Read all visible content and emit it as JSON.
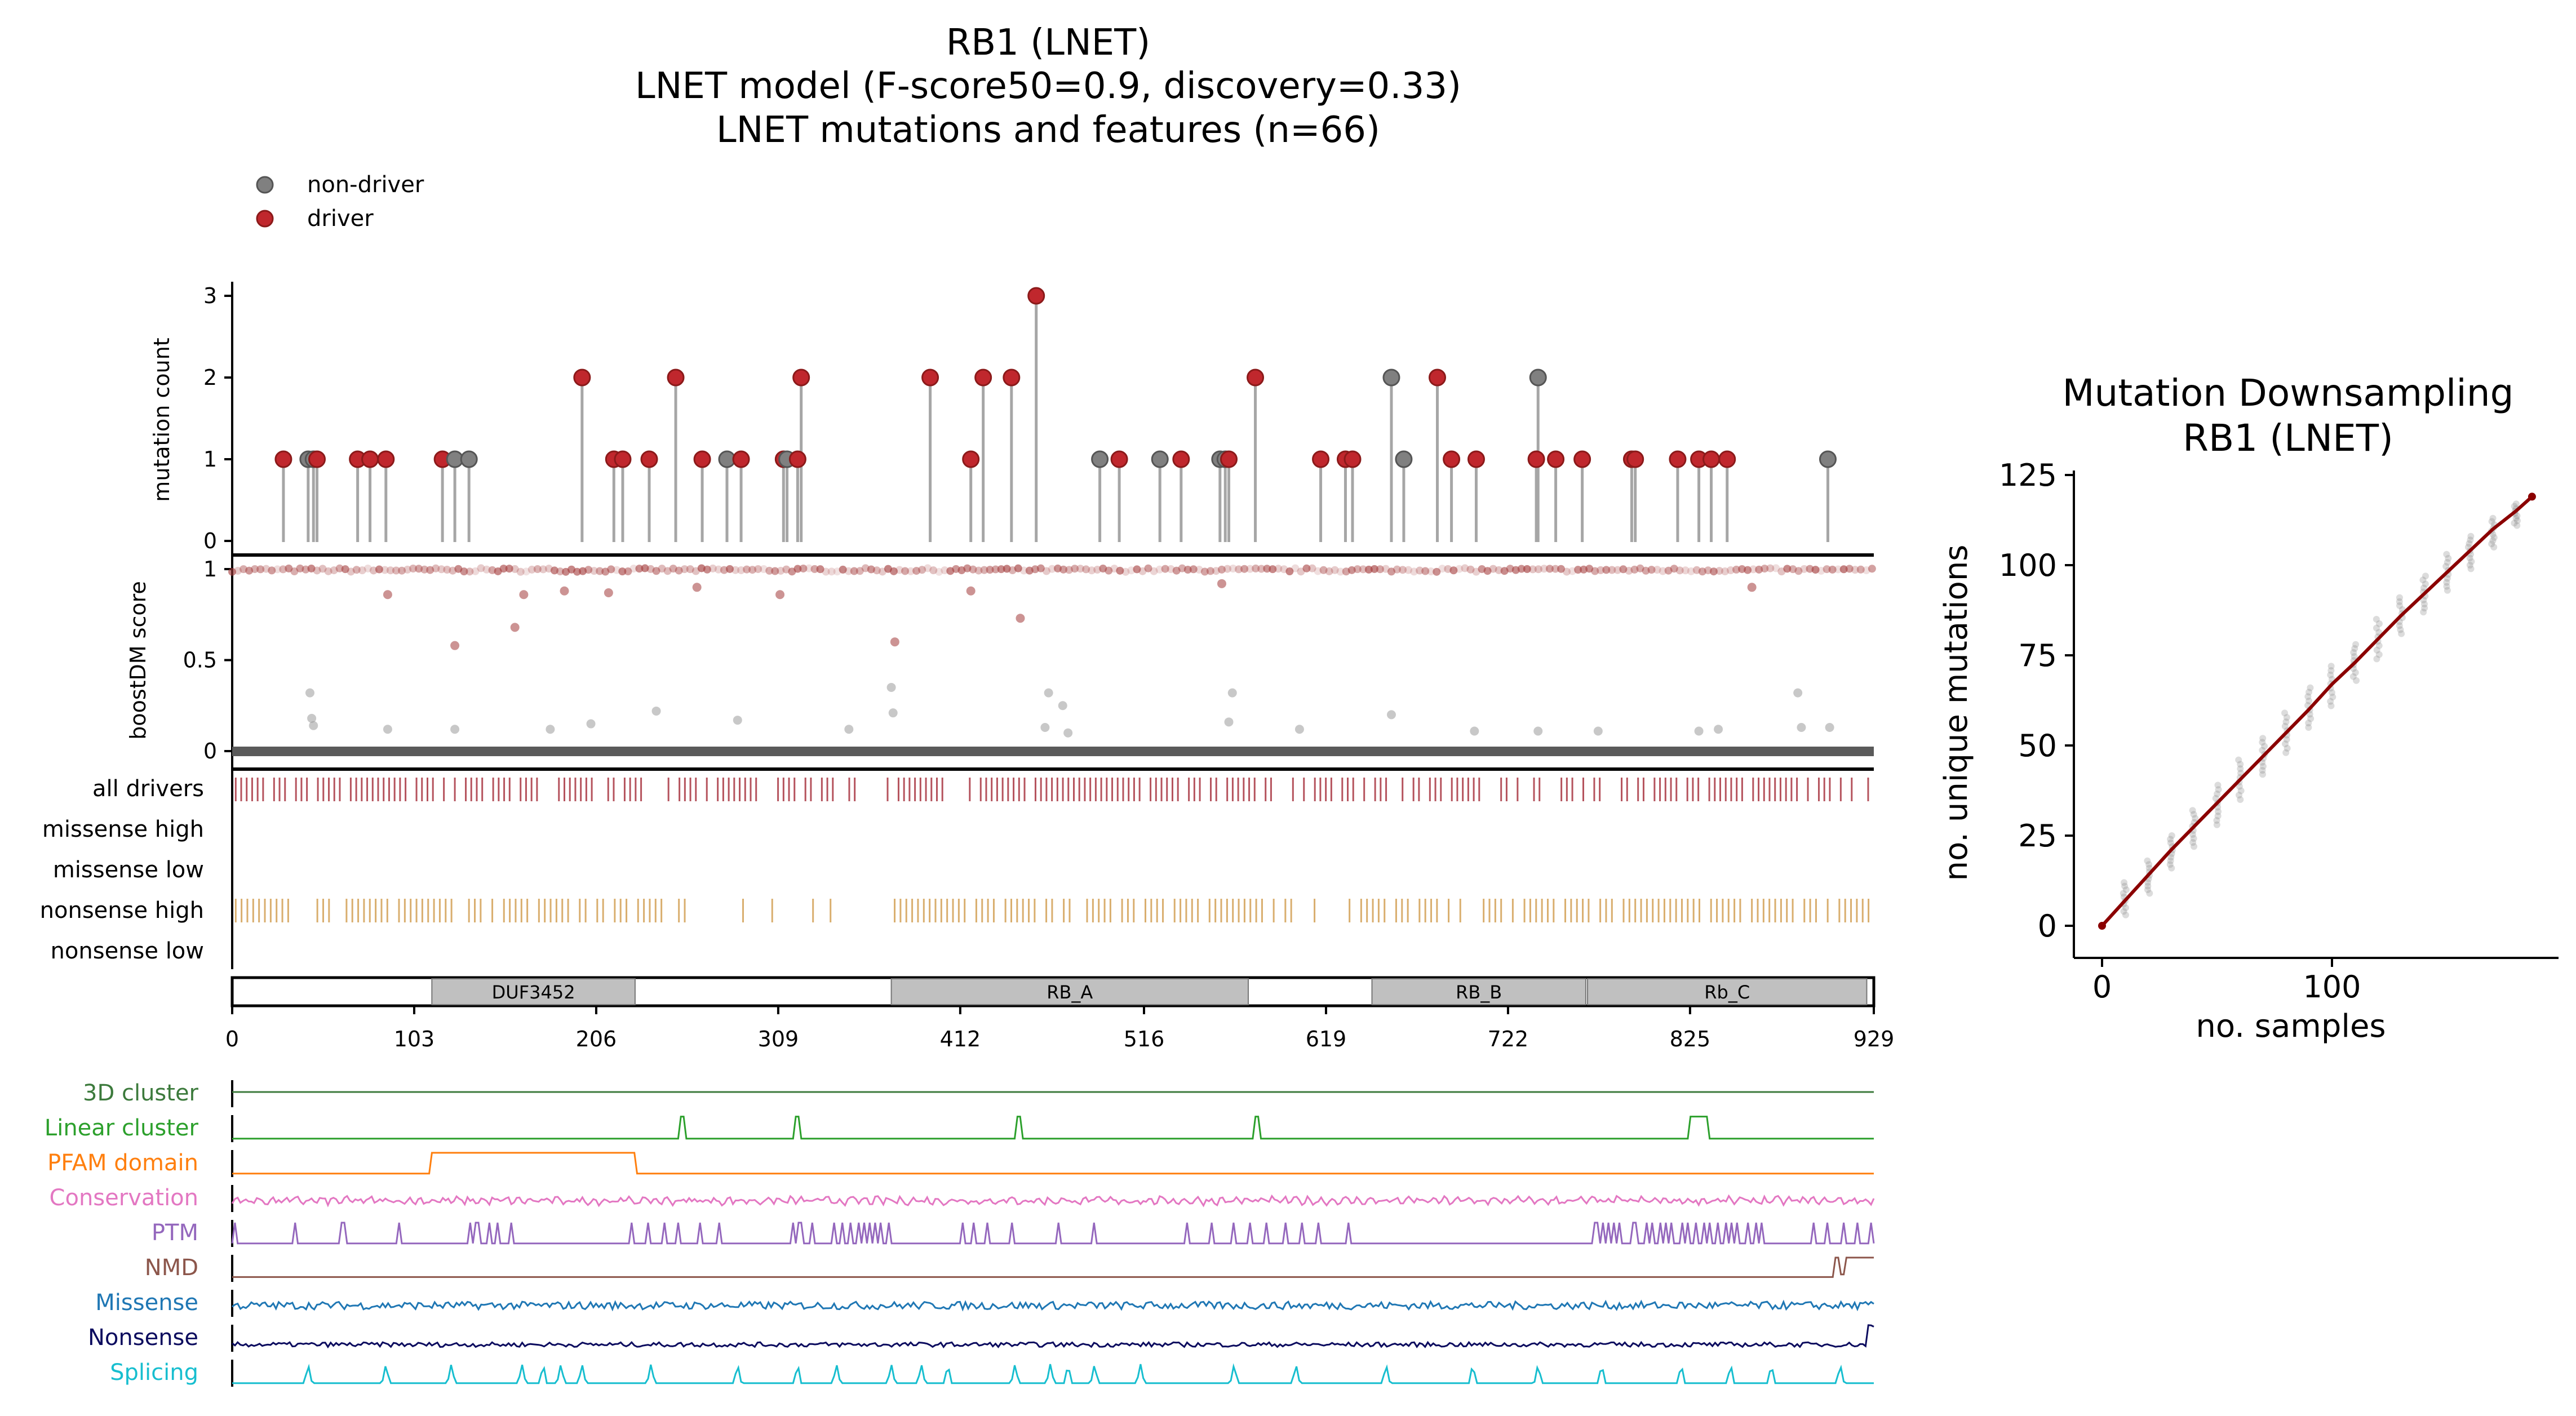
{
  "title": {
    "line1": "RB1 (LNET)",
    "line2": "LNET model (F-score50=0.9, discovery=0.33)",
    "line3": "LNET mutations and features (n=66)"
  },
  "legend": {
    "non_driver_label": "non-driver",
    "driver_label": "driver",
    "colors": {
      "non_driver": "#808080",
      "driver": "#c0272d"
    }
  },
  "colors": {
    "stem": "#a6a6a6",
    "driver_dot": "#c0272d",
    "non_driver_dot": "#808080",
    "score_pos": "#a33b3b",
    "score_neg": "#9a9a9a",
    "all_drivers_tick": "#b5535d",
    "nonsense_tick": "#d9ae6e",
    "domain_fill": "#c0c0c0",
    "downsampling_line": "#8b0000",
    "downsampling_points": "#8a8a8a"
  },
  "chart_data": [
    {
      "type": "lollipop",
      "ylabel": "mutation count",
      "yticks": [
        "0",
        "1",
        "2",
        "3"
      ],
      "ylim": [
        0,
        3
      ],
      "xlim": [
        0,
        929
      ],
      "mutations": [
        {
          "pos": 29,
          "count": 1,
          "driver": true
        },
        {
          "pos": 43,
          "count": 1,
          "driver": false
        },
        {
          "pos": 46,
          "count": 1,
          "driver": false
        },
        {
          "pos": 48,
          "count": 1,
          "driver": true
        },
        {
          "pos": 71,
          "count": 1,
          "driver": true
        },
        {
          "pos": 78,
          "count": 1,
          "driver": true
        },
        {
          "pos": 87,
          "count": 1,
          "driver": true
        },
        {
          "pos": 119,
          "count": 1,
          "driver": true
        },
        {
          "pos": 126,
          "count": 1,
          "driver": false
        },
        {
          "pos": 134,
          "count": 1,
          "driver": false
        },
        {
          "pos": 198,
          "count": 2,
          "driver": true
        },
        {
          "pos": 216,
          "count": 1,
          "driver": true
        },
        {
          "pos": 221,
          "count": 1,
          "driver": true
        },
        {
          "pos": 236,
          "count": 1,
          "driver": true
        },
        {
          "pos": 251,
          "count": 2,
          "driver": true
        },
        {
          "pos": 266,
          "count": 1,
          "driver": true
        },
        {
          "pos": 280,
          "count": 1,
          "driver": false
        },
        {
          "pos": 288,
          "count": 1,
          "driver": true
        },
        {
          "pos": 312,
          "count": 1,
          "driver": true
        },
        {
          "pos": 314,
          "count": 1,
          "driver": false
        },
        {
          "pos": 320,
          "count": 1,
          "driver": true
        },
        {
          "pos": 322,
          "count": 2,
          "driver": true
        },
        {
          "pos": 395,
          "count": 2,
          "driver": true
        },
        {
          "pos": 418,
          "count": 1,
          "driver": true
        },
        {
          "pos": 425,
          "count": 2,
          "driver": true
        },
        {
          "pos": 441,
          "count": 2,
          "driver": true
        },
        {
          "pos": 455,
          "count": 3,
          "driver": true
        },
        {
          "pos": 491,
          "count": 1,
          "driver": false
        },
        {
          "pos": 502,
          "count": 1,
          "driver": true
        },
        {
          "pos": 525,
          "count": 1,
          "driver": false
        },
        {
          "pos": 537,
          "count": 1,
          "driver": true
        },
        {
          "pos": 559,
          "count": 1,
          "driver": false
        },
        {
          "pos": 562,
          "count": 1,
          "driver": false
        },
        {
          "pos": 564,
          "count": 1,
          "driver": true
        },
        {
          "pos": 579,
          "count": 2,
          "driver": true
        },
        {
          "pos": 616,
          "count": 1,
          "driver": true
        },
        {
          "pos": 630,
          "count": 1,
          "driver": true
        },
        {
          "pos": 634,
          "count": 1,
          "driver": true
        },
        {
          "pos": 656,
          "count": 2,
          "driver": false
        },
        {
          "pos": 663,
          "count": 1,
          "driver": false
        },
        {
          "pos": 682,
          "count": 2,
          "driver": true
        },
        {
          "pos": 690,
          "count": 1,
          "driver": true
        },
        {
          "pos": 704,
          "count": 1,
          "driver": true
        },
        {
          "pos": 738,
          "count": 1,
          "driver": true
        },
        {
          "pos": 739,
          "count": 2,
          "driver": false
        },
        {
          "pos": 749,
          "count": 1,
          "driver": true
        },
        {
          "pos": 764,
          "count": 1,
          "driver": true
        },
        {
          "pos": 792,
          "count": 1,
          "driver": true
        },
        {
          "pos": 794,
          "count": 1,
          "driver": true
        },
        {
          "pos": 818,
          "count": 1,
          "driver": true
        },
        {
          "pos": 830,
          "count": 1,
          "driver": true
        },
        {
          "pos": 837,
          "count": 1,
          "driver": true
        },
        {
          "pos": 846,
          "count": 1,
          "driver": true
        },
        {
          "pos": 903,
          "count": 1,
          "driver": false
        }
      ]
    },
    {
      "type": "scatter",
      "ylabel": "boostDM score",
      "yticks": [
        "0",
        "0.5",
        "1"
      ],
      "ylim": [
        0,
        1
      ],
      "xlim": [
        0,
        929
      ],
      "high_scores": [
        {
          "x": 165,
          "y": 0.86
        },
        {
          "x": 213,
          "y": 0.87
        },
        {
          "x": 263,
          "y": 0.9
        },
        {
          "x": 310,
          "y": 0.86
        },
        {
          "x": 418,
          "y": 0.88
        },
        {
          "x": 446,
          "y": 0.73
        },
        {
          "x": 88,
          "y": 0.86
        },
        {
          "x": 126,
          "y": 0.58
        },
        {
          "x": 160,
          "y": 0.68
        },
        {
          "x": 188,
          "y": 0.88
        },
        {
          "x": 375,
          "y": 0.6
        },
        {
          "x": 560,
          "y": 0.92
        },
        {
          "x": 860,
          "y": 0.9
        }
      ],
      "low_scores": [
        {
          "x": 44,
          "y": 0.32
        },
        {
          "x": 45,
          "y": 0.18
        },
        {
          "x": 46,
          "y": 0.14
        },
        {
          "x": 88,
          "y": 0.12
        },
        {
          "x": 126,
          "y": 0.12
        },
        {
          "x": 180,
          "y": 0.12
        },
        {
          "x": 203,
          "y": 0.15
        },
        {
          "x": 240,
          "y": 0.22
        },
        {
          "x": 286,
          "y": 0.17
        },
        {
          "x": 349,
          "y": 0.12
        },
        {
          "x": 373,
          "y": 0.35
        },
        {
          "x": 374,
          "y": 0.21
        },
        {
          "x": 462,
          "y": 0.32
        },
        {
          "x": 470,
          "y": 0.25
        },
        {
          "x": 460,
          "y": 0.13
        },
        {
          "x": 473,
          "y": 0.1
        },
        {
          "x": 564,
          "y": 0.16
        },
        {
          "x": 566,
          "y": 0.32
        },
        {
          "x": 604,
          "y": 0.12
        },
        {
          "x": 656,
          "y": 0.2
        },
        {
          "x": 703,
          "y": 0.11
        },
        {
          "x": 739,
          "y": 0.11
        },
        {
          "x": 773,
          "y": 0.11
        },
        {
          "x": 830,
          "y": 0.11
        },
        {
          "x": 841,
          "y": 0.12
        },
        {
          "x": 886,
          "y": 0.32
        },
        {
          "x": 888,
          "y": 0.13
        },
        {
          "x": 904,
          "y": 0.13
        }
      ]
    },
    {
      "type": "track",
      "rows": [
        "all drivers",
        "missense high",
        "missense low",
        "nonsense high",
        "nonsense low"
      ]
    },
    {
      "type": "domains",
      "domains": [
        {
          "name": "DUF3452",
          "start": 113,
          "end": 228
        },
        {
          "name": "RB_A",
          "start": 373,
          "end": 575
        },
        {
          "name": "RB_B",
          "start": 645,
          "end": 766
        },
        {
          "name": "Rb_C",
          "start": 767,
          "end": 925
        }
      ],
      "xticks": [
        "0",
        "103",
        "206",
        "309",
        "412",
        "516",
        "619",
        "722",
        "825",
        "929"
      ],
      "xmax": 929
    },
    {
      "type": "line",
      "features": [
        {
          "name": "3D cluster",
          "color": "#3c7a3c"
        },
        {
          "name": "Linear cluster",
          "color": "#2ca02c"
        },
        {
          "name": "PFAM domain",
          "color": "#ff7f0e"
        },
        {
          "name": "Conservation",
          "color": "#e377c2"
        },
        {
          "name": "PTM",
          "color": "#9467bd"
        },
        {
          "name": "NMD",
          "color": "#8c564b"
        },
        {
          "name": "Missense",
          "color": "#1f77b4"
        },
        {
          "name": "Nonsense",
          "color": "#0b0b5e"
        },
        {
          "name": "Splicing",
          "color": "#17becf"
        }
      ],
      "linear_cluster_positions": [
        255,
        320,
        445,
        580,
        830
      ],
      "pfam_range": [
        113,
        228
      ],
      "nmd_range": [
        905,
        929
      ],
      "ptm_positions": [
        2,
        35,
        62,
        63,
        94,
        135,
        138,
        140,
        145,
        150,
        158,
        226,
        236,
        245,
        252,
        265,
        276,
        318,
        320,
        322,
        328,
        340,
        345,
        350,
        355,
        358,
        361,
        364,
        367,
        371,
        414,
        420,
        428,
        442,
        468,
        487,
        541,
        554,
        567,
        576,
        586,
        596,
        606,
        615,
        631,
        771,
        772,
        776,
        779,
        782,
        785,
        792,
        795,
        800,
        804,
        808,
        812,
        815,
        820,
        824,
        828,
        833,
        836,
        840,
        845,
        848,
        852,
        858,
        862,
        866,
        895,
        902,
        912,
        920,
        928
      ],
      "splicing_positions": [
        43,
        87,
        124,
        164,
        176,
        186,
        198,
        237,
        286,
        320,
        342,
        373,
        390,
        405,
        443,
        463,
        473,
        488,
        514,
        567,
        602,
        653,
        702,
        739,
        775,
        820,
        848,
        871,
        910
      ]
    },
    {
      "type": "scatter",
      "title_line1": "Mutation Downsampling",
      "title_line2": "RB1 (LNET)",
      "xlabel": "no. samples",
      "ylabel": "no. unique mutations",
      "xlim": [
        -10,
        190
      ],
      "ylim": [
        -5,
        125
      ],
      "xticks": [
        "0",
        "100"
      ],
      "yticks": [
        "0",
        "25",
        "50",
        "75",
        "100",
        "125"
      ],
      "line": [
        [
          0,
          0
        ],
        [
          10,
          7
        ],
        [
          20,
          14
        ],
        [
          30,
          21
        ],
        [
          40,
          27.5
        ],
        [
          50,
          34
        ],
        [
          60,
          40.5
        ],
        [
          70,
          47
        ],
        [
          80,
          53.5
        ],
        [
          90,
          60
        ],
        [
          100,
          67
        ],
        [
          110,
          73
        ],
        [
          120,
          79.5
        ],
        [
          130,
          86
        ],
        [
          140,
          92
        ],
        [
          150,
          98
        ],
        [
          160,
          104
        ],
        [
          170,
          110
        ],
        [
          180,
          115
        ],
        [
          187,
          119
        ]
      ],
      "points": [
        {
          "x": 10,
          "min": 3,
          "max": 12
        },
        {
          "x": 20,
          "min": 9,
          "max": 18
        },
        {
          "x": 30,
          "min": 16,
          "max": 25
        },
        {
          "x": 40,
          "min": 22,
          "max": 32
        },
        {
          "x": 50,
          "min": 28,
          "max": 39
        },
        {
          "x": 60,
          "min": 35,
          "max": 46
        },
        {
          "x": 70,
          "min": 42,
          "max": 52
        },
        {
          "x": 80,
          "min": 48,
          "max": 59
        },
        {
          "x": 90,
          "min": 55,
          "max": 66
        },
        {
          "x": 100,
          "min": 61,
          "max": 72
        },
        {
          "x": 110,
          "min": 68,
          "max": 78
        },
        {
          "x": 120,
          "min": 74,
          "max": 85
        },
        {
          "x": 130,
          "min": 81,
          "max": 91
        },
        {
          "x": 140,
          "min": 87,
          "max": 97
        },
        {
          "x": 150,
          "min": 93,
          "max": 103
        },
        {
          "x": 160,
          "min": 99,
          "max": 108
        },
        {
          "x": 170,
          "min": 105,
          "max": 113
        },
        {
          "x": 180,
          "min": 111,
          "max": 117
        }
      ]
    }
  ]
}
